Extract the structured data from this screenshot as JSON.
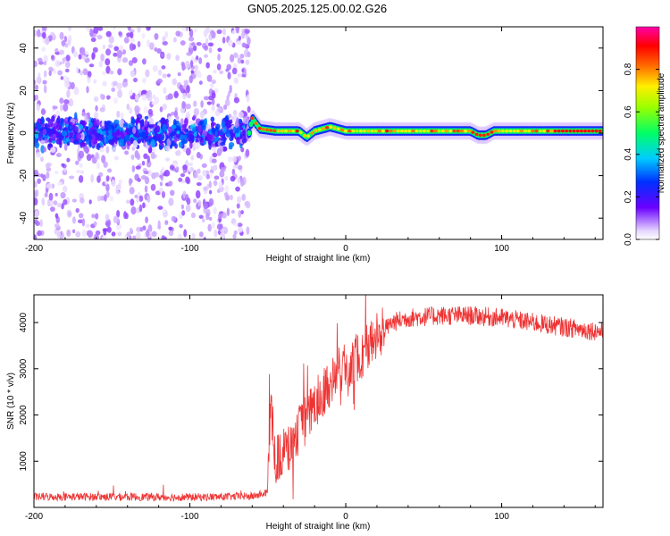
{
  "title": "GN05.2025.125.00.02.G26",
  "chart_data": [
    {
      "type": "heatmap",
      "xlabel": "Height of straight line (km)",
      "ylabel": "Frequency (Hz)",
      "xlim": [
        -200,
        165
      ],
      "ylim": [
        -50,
        50
      ],
      "x_ticks": [
        -200,
        -100,
        0,
        100
      ],
      "y_ticks": [
        -40,
        -20,
        0,
        20,
        40
      ],
      "colorbar": {
        "label": "Normalized spectral amplitude",
        "range": [
          0,
          1
        ],
        "ticks": [
          0.0,
          0.2,
          0.4,
          0.6,
          0.8
        ]
      },
      "frequency_track": [
        {
          "x": -200,
          "f": 0
        },
        {
          "x": -62,
          "f": 0
        },
        {
          "x": -60,
          "f": 7
        },
        {
          "x": -55,
          "f": 2
        },
        {
          "x": -45,
          "f": 1
        },
        {
          "x": -30,
          "f": 1
        },
        {
          "x": -25,
          "f": -2
        },
        {
          "x": -20,
          "f": 1
        },
        {
          "x": -10,
          "f": 3
        },
        {
          "x": 0,
          "f": 1
        },
        {
          "x": 80,
          "f": 1
        },
        {
          "x": 85,
          "f": -1
        },
        {
          "x": 90,
          "f": -1
        },
        {
          "x": 95,
          "f": 1
        },
        {
          "x": 135,
          "f": 1
        },
        {
          "x": 140,
          "f": 1
        },
        {
          "x": 165,
          "f": 1
        }
      ]
    },
    {
      "type": "line",
      "xlabel": "Height of straight line (km)",
      "ylabel": "SNR (10 * v/v)",
      "xlim": [
        -200,
        165
      ],
      "ylim": [
        0,
        4600
      ],
      "x_ticks": [
        -200,
        -100,
        0,
        100
      ],
      "y_ticks": [
        1000,
        2000,
        3000,
        4000
      ],
      "series": [
        {
          "color": "#ee3333",
          "values": [
            {
              "x": -200,
              "y": 230
            },
            {
              "x": -150,
              "y": 230
            },
            {
              "x": -100,
              "y": 220
            },
            {
              "x": -60,
              "y": 240
            },
            {
              "x": -50,
              "y": 320
            },
            {
              "x": -48,
              "y": 2300
            },
            {
              "x": -45,
              "y": 1000
            },
            {
              "x": -40,
              "y": 1200
            },
            {
              "x": -35,
              "y": 1300
            },
            {
              "x": -30,
              "y": 1700
            },
            {
              "x": -25,
              "y": 1900
            },
            {
              "x": -20,
              "y": 2200
            },
            {
              "x": -15,
              "y": 2500
            },
            {
              "x": -10,
              "y": 2700
            },
            {
              "x": -5,
              "y": 2900
            },
            {
              "x": 0,
              "y": 3100
            },
            {
              "x": 10,
              "y": 3300
            },
            {
              "x": 20,
              "y": 3700
            },
            {
              "x": 30,
              "y": 4000
            },
            {
              "x": 40,
              "y": 4100
            },
            {
              "x": 60,
              "y": 4150
            },
            {
              "x": 80,
              "y": 4150
            },
            {
              "x": 100,
              "y": 4100
            },
            {
              "x": 120,
              "y": 4000
            },
            {
              "x": 140,
              "y": 3900
            },
            {
              "x": 165,
              "y": 3800
            }
          ]
        }
      ]
    }
  ]
}
